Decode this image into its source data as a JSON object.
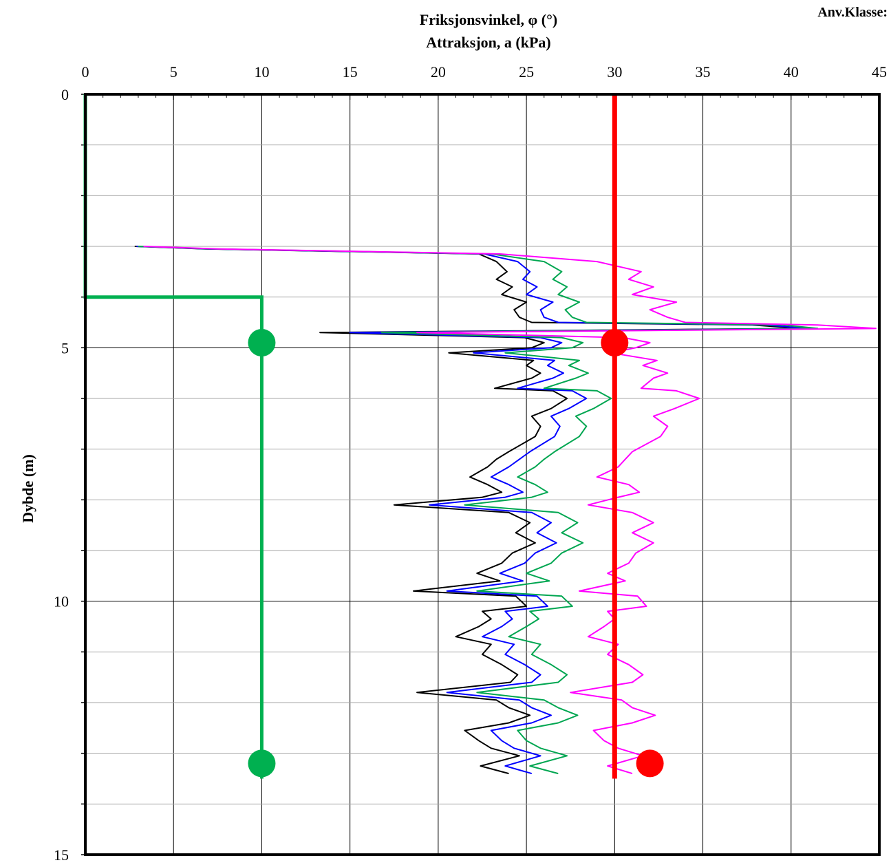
{
  "chart_data": {
    "type": "line",
    "title_line1": "Friksjonsvinkel, φ (°)",
    "title_line2": "Attraksjon, a (kPa)",
    "corner_label": "Anv.Klasse:",
    "ylabel": "Dybde (m)",
    "xlim": [
      0,
      45
    ],
    "ylim": [
      0,
      15
    ],
    "y_inverted": true,
    "x_ticks": [
      0,
      5,
      10,
      15,
      20,
      25,
      30,
      35,
      40,
      45
    ],
    "y_ticks": [
      0,
      5,
      10,
      15
    ],
    "y_minor_step": 1,
    "grid": true,
    "colors": {
      "black": "#000000",
      "blue": "#0000ff",
      "green": "#00a651",
      "magenta": "#ff00ff",
      "red": "#ff0000",
      "green_line": "#00b050"
    },
    "series": [
      {
        "color": "black",
        "points": [
          [
            2.8,
            3.0
          ],
          [
            6.8,
            3.05
          ],
          [
            22.3,
            3.15
          ],
          [
            23.3,
            3.3
          ],
          [
            23.9,
            3.5
          ],
          [
            23.3,
            3.65
          ],
          [
            24.2,
            3.8
          ],
          [
            23.6,
            3.95
          ],
          [
            25.0,
            4.1
          ],
          [
            24.3,
            4.25
          ],
          [
            24.6,
            4.4
          ],
          [
            25.3,
            4.5
          ],
          [
            37.8,
            4.55
          ],
          [
            40.6,
            4.62
          ],
          [
            13.3,
            4.7
          ],
          [
            24.9,
            4.8
          ],
          [
            26.0,
            4.9
          ],
          [
            25.3,
            5.0
          ],
          [
            20.6,
            5.1
          ],
          [
            25.4,
            5.25
          ],
          [
            25.0,
            5.35
          ],
          [
            25.8,
            5.5
          ],
          [
            25.3,
            5.6
          ],
          [
            23.2,
            5.8
          ],
          [
            26.5,
            5.85
          ],
          [
            27.3,
            6.0
          ],
          [
            26.4,
            6.2
          ],
          [
            25.3,
            6.35
          ],
          [
            25.8,
            6.55
          ],
          [
            25.5,
            6.75
          ],
          [
            24.0,
            7.05
          ],
          [
            23.3,
            7.2
          ],
          [
            22.8,
            7.35
          ],
          [
            21.8,
            7.55
          ],
          [
            22.8,
            7.7
          ],
          [
            23.6,
            7.85
          ],
          [
            22.5,
            7.95
          ],
          [
            17.5,
            8.1
          ],
          [
            24.0,
            8.25
          ],
          [
            25.2,
            8.45
          ],
          [
            24.4,
            8.65
          ],
          [
            25.5,
            8.85
          ],
          [
            24.2,
            9.05
          ],
          [
            23.6,
            9.25
          ],
          [
            22.2,
            9.45
          ],
          [
            23.5,
            9.6
          ],
          [
            18.6,
            9.8
          ],
          [
            24.4,
            9.9
          ],
          [
            25.0,
            10.1
          ],
          [
            22.5,
            10.2
          ],
          [
            23.0,
            10.35
          ],
          [
            22.3,
            10.5
          ],
          [
            21.0,
            10.7
          ],
          [
            23.0,
            10.85
          ],
          [
            22.5,
            11.05
          ],
          [
            23.6,
            11.25
          ],
          [
            24.5,
            11.45
          ],
          [
            24.1,
            11.6
          ],
          [
            18.8,
            11.8
          ],
          [
            23.3,
            11.95
          ],
          [
            24.0,
            12.1
          ],
          [
            25.2,
            12.25
          ],
          [
            24.0,
            12.4
          ],
          [
            21.5,
            12.55
          ],
          [
            22.3,
            12.75
          ],
          [
            23.0,
            12.9
          ],
          [
            24.6,
            13.05
          ],
          [
            22.4,
            13.25
          ],
          [
            24.0,
            13.4
          ]
        ]
      },
      {
        "color": "blue",
        "points": [
          [
            2.9,
            3.0
          ],
          [
            7.0,
            3.05
          ],
          [
            22.6,
            3.15
          ],
          [
            24.5,
            3.3
          ],
          [
            25.2,
            3.5
          ],
          [
            24.8,
            3.65
          ],
          [
            25.6,
            3.8
          ],
          [
            25.0,
            3.95
          ],
          [
            26.5,
            4.1
          ],
          [
            25.8,
            4.25
          ],
          [
            26.0,
            4.4
          ],
          [
            26.8,
            4.5
          ],
          [
            38.5,
            4.55
          ],
          [
            41.0,
            4.62
          ],
          [
            15.0,
            4.7
          ],
          [
            25.8,
            4.8
          ],
          [
            27.0,
            4.9
          ],
          [
            26.4,
            5.0
          ],
          [
            22.0,
            5.1
          ],
          [
            26.6,
            5.25
          ],
          [
            26.2,
            5.35
          ],
          [
            27.1,
            5.5
          ],
          [
            26.5,
            5.6
          ],
          [
            24.5,
            5.8
          ],
          [
            27.6,
            5.85
          ],
          [
            28.4,
            6.0
          ],
          [
            27.4,
            6.2
          ],
          [
            26.4,
            6.35
          ],
          [
            26.9,
            6.55
          ],
          [
            26.6,
            6.75
          ],
          [
            25.2,
            7.05
          ],
          [
            24.6,
            7.2
          ],
          [
            24.0,
            7.35
          ],
          [
            23.0,
            7.55
          ],
          [
            24.0,
            7.7
          ],
          [
            24.8,
            7.85
          ],
          [
            23.8,
            7.95
          ],
          [
            19.5,
            8.1
          ],
          [
            25.3,
            8.25
          ],
          [
            26.4,
            8.45
          ],
          [
            25.6,
            8.65
          ],
          [
            26.7,
            8.85
          ],
          [
            25.5,
            9.05
          ],
          [
            24.9,
            9.25
          ],
          [
            23.5,
            9.45
          ],
          [
            24.8,
            9.6
          ],
          [
            20.5,
            9.8
          ],
          [
            25.6,
            9.9
          ],
          [
            26.2,
            10.1
          ],
          [
            23.8,
            10.2
          ],
          [
            24.2,
            10.35
          ],
          [
            23.6,
            10.5
          ],
          [
            22.5,
            10.7
          ],
          [
            24.3,
            10.85
          ],
          [
            23.8,
            11.05
          ],
          [
            24.9,
            11.25
          ],
          [
            25.8,
            11.45
          ],
          [
            25.3,
            11.6
          ],
          [
            20.5,
            11.8
          ],
          [
            24.6,
            11.95
          ],
          [
            25.3,
            12.1
          ],
          [
            26.4,
            12.25
          ],
          [
            25.3,
            12.4
          ],
          [
            23.0,
            12.55
          ],
          [
            23.6,
            12.75
          ],
          [
            24.3,
            12.9
          ],
          [
            25.8,
            13.05
          ],
          [
            23.8,
            13.25
          ],
          [
            25.3,
            13.4
          ]
        ]
      },
      {
        "color": "green",
        "points": [
          [
            3.0,
            3.0
          ],
          [
            7.2,
            3.05
          ],
          [
            23.0,
            3.15
          ],
          [
            26.0,
            3.3
          ],
          [
            27.0,
            3.5
          ],
          [
            26.5,
            3.65
          ],
          [
            27.3,
            3.8
          ],
          [
            26.8,
            3.95
          ],
          [
            28.0,
            4.1
          ],
          [
            27.2,
            4.25
          ],
          [
            27.6,
            4.4
          ],
          [
            28.4,
            4.5
          ],
          [
            39.5,
            4.55
          ],
          [
            41.5,
            4.62
          ],
          [
            16.8,
            4.7
          ],
          [
            27.0,
            4.8
          ],
          [
            28.2,
            4.9
          ],
          [
            27.6,
            5.0
          ],
          [
            23.8,
            5.1
          ],
          [
            28.0,
            5.25
          ],
          [
            27.4,
            5.35
          ],
          [
            28.5,
            5.5
          ],
          [
            27.8,
            5.6
          ],
          [
            26.0,
            5.8
          ],
          [
            29.0,
            5.85
          ],
          [
            29.8,
            6.0
          ],
          [
            28.8,
            6.2
          ],
          [
            27.8,
            6.35
          ],
          [
            28.4,
            6.55
          ],
          [
            28.0,
            6.75
          ],
          [
            26.6,
            7.05
          ],
          [
            26.0,
            7.2
          ],
          [
            25.5,
            7.35
          ],
          [
            24.5,
            7.55
          ],
          [
            25.5,
            7.7
          ],
          [
            26.2,
            7.85
          ],
          [
            25.3,
            7.95
          ],
          [
            21.5,
            8.1
          ],
          [
            26.8,
            8.25
          ],
          [
            27.9,
            8.45
          ],
          [
            27.0,
            8.65
          ],
          [
            28.2,
            8.85
          ],
          [
            27.0,
            9.05
          ],
          [
            26.4,
            9.25
          ],
          [
            25.0,
            9.45
          ],
          [
            26.3,
            9.6
          ],
          [
            22.2,
            9.8
          ],
          [
            27.0,
            9.9
          ],
          [
            27.6,
            10.1
          ],
          [
            25.2,
            10.2
          ],
          [
            25.7,
            10.35
          ],
          [
            25.0,
            10.5
          ],
          [
            24.0,
            10.7
          ],
          [
            25.8,
            10.85
          ],
          [
            25.3,
            11.05
          ],
          [
            26.4,
            11.25
          ],
          [
            27.3,
            11.45
          ],
          [
            26.8,
            11.6
          ],
          [
            22.2,
            11.8
          ],
          [
            26.0,
            11.95
          ],
          [
            26.8,
            12.1
          ],
          [
            27.9,
            12.25
          ],
          [
            26.8,
            12.4
          ],
          [
            24.5,
            12.55
          ],
          [
            25.0,
            12.75
          ],
          [
            25.8,
            12.9
          ],
          [
            27.3,
            13.05
          ],
          [
            25.2,
            13.25
          ],
          [
            26.8,
            13.4
          ]
        ]
      },
      {
        "color": "magenta",
        "points": [
          [
            3.3,
            3.0
          ],
          [
            7.5,
            3.05
          ],
          [
            23.5,
            3.15
          ],
          [
            29.0,
            3.3
          ],
          [
            31.5,
            3.5
          ],
          [
            30.8,
            3.65
          ],
          [
            32.2,
            3.8
          ],
          [
            31.0,
            3.95
          ],
          [
            33.5,
            4.1
          ],
          [
            32.0,
            4.25
          ],
          [
            33.0,
            4.4
          ],
          [
            34.0,
            4.5
          ],
          [
            41.5,
            4.55
          ],
          [
            44.8,
            4.62
          ],
          [
            18.8,
            4.7
          ],
          [
            30.5,
            4.8
          ],
          [
            32.0,
            4.9
          ],
          [
            31.2,
            5.0
          ],
          [
            29.8,
            5.1
          ],
          [
            32.4,
            5.25
          ],
          [
            31.6,
            5.35
          ],
          [
            33.0,
            5.5
          ],
          [
            32.2,
            5.6
          ],
          [
            31.5,
            5.8
          ],
          [
            33.5,
            5.85
          ],
          [
            34.8,
            6.0
          ],
          [
            33.4,
            6.2
          ],
          [
            32.2,
            6.35
          ],
          [
            33.0,
            6.55
          ],
          [
            32.6,
            6.75
          ],
          [
            31.0,
            7.05
          ],
          [
            30.6,
            7.2
          ],
          [
            30.2,
            7.35
          ],
          [
            29.0,
            7.55
          ],
          [
            30.8,
            7.7
          ],
          [
            31.4,
            7.85
          ],
          [
            30.2,
            7.95
          ],
          [
            28.5,
            8.1
          ],
          [
            31.0,
            8.25
          ],
          [
            32.2,
            8.45
          ],
          [
            31.0,
            8.65
          ],
          [
            32.2,
            8.85
          ],
          [
            31.2,
            9.05
          ],
          [
            30.8,
            9.25
          ],
          [
            29.6,
            9.45
          ],
          [
            30.6,
            9.6
          ],
          [
            28.0,
            9.8
          ],
          [
            31.3,
            9.9
          ],
          [
            31.8,
            10.1
          ],
          [
            29.6,
            10.2
          ],
          [
            30.0,
            10.35
          ],
          [
            29.4,
            10.5
          ],
          [
            28.5,
            10.7
          ],
          [
            30.2,
            10.85
          ],
          [
            29.6,
            11.05
          ],
          [
            30.8,
            11.25
          ],
          [
            31.6,
            11.45
          ],
          [
            31.0,
            11.6
          ],
          [
            27.5,
            11.8
          ],
          [
            30.4,
            11.95
          ],
          [
            31.0,
            12.1
          ],
          [
            32.3,
            12.25
          ],
          [
            31.0,
            12.4
          ],
          [
            28.8,
            12.55
          ],
          [
            29.4,
            12.75
          ],
          [
            30.2,
            12.9
          ],
          [
            31.6,
            13.05
          ],
          [
            29.6,
            13.25
          ],
          [
            31.0,
            13.4
          ]
        ]
      }
    ],
    "red_line": {
      "x": 30,
      "y_start": 0,
      "y_end": 13.5
    },
    "green_step": [
      [
        0,
        0
      ],
      [
        0,
        4.0
      ],
      [
        10,
        4.0
      ],
      [
        10,
        13.5
      ]
    ],
    "red_points": [
      [
        30,
        4.9
      ],
      [
        32,
        13.2
      ]
    ],
    "green_points": [
      [
        10,
        4.9
      ],
      [
        10,
        13.2
      ]
    ]
  }
}
